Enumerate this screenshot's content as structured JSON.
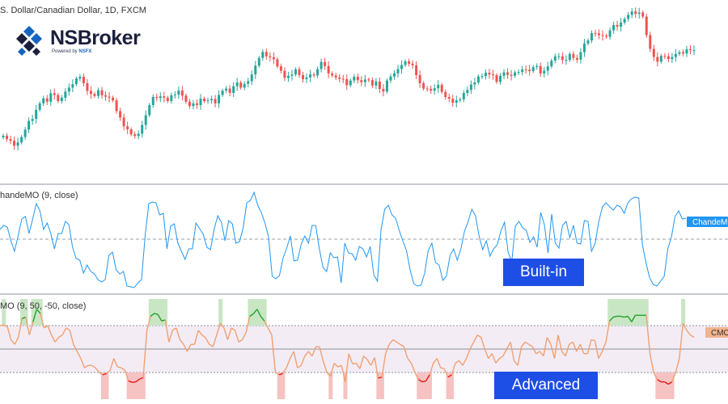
{
  "header": {
    "price_title": "S. Dollar/Canadian Dollar, 1D, FXCM",
    "builtin_title": "handeMO (9, close)",
    "advanced_title": "MO (9, 50, -50, close)"
  },
  "logo": {
    "name": "NSBroker",
    "sub_prefix": "Powered by ",
    "sub_brand": "NSFX"
  },
  "badges": {
    "builtin": "Built-in",
    "advanced": "Advanced"
  },
  "scale_tags": {
    "builtin": "ChandeMO",
    "advanced": "CMO"
  },
  "colors": {
    "up": "#26a69a",
    "down": "#ef5350",
    "builtin_line": "#2196f3",
    "advanced_mid": "#f0a070",
    "advanced_high": "#22a02a",
    "advanced_low": "#e31a1c",
    "badge": "#1d4ee6",
    "tag_builtin_bg": "#2196f3",
    "tag_advanced_bg": "#f0b48c"
  },
  "chart_data": {
    "type": "line",
    "price": {
      "closes": [
        1.2938,
        1.2928,
        1.2923,
        1.2908,
        1.2918,
        1.2934,
        1.2956,
        1.2982,
        1.2988,
        1.3015,
        1.3034,
        1.3049,
        1.3039,
        1.3064,
        1.3059,
        1.3041,
        1.3051,
        1.3069,
        1.3081,
        1.3091,
        1.3108,
        1.3113,
        1.3094,
        1.3071,
        1.3062,
        1.3056,
        1.3073,
        1.3058,
        1.3054,
        1.3051,
        1.3043,
        1.3011,
        1.2992,
        1.2966,
        1.2957,
        1.2942,
        1.2937,
        1.2944,
        1.297,
        1.2999,
        1.3029,
        1.3053,
        1.305,
        1.3055,
        1.3051,
        1.3041,
        1.3058,
        1.306,
        1.3072,
        1.3057,
        1.3039,
        1.3026,
        1.3034,
        1.3029,
        1.3048,
        1.3041,
        1.3043,
        1.3047,
        1.3034,
        1.3059,
        1.3072,
        1.3078,
        1.3065,
        1.3085,
        1.3096,
        1.3081,
        1.3092,
        1.31,
        1.312,
        1.3146,
        1.3169,
        1.3187,
        1.3174,
        1.3171,
        1.3165,
        1.3144,
        1.3131,
        1.311,
        1.3116,
        1.312,
        1.3135,
        1.3118,
        1.3106,
        1.3111,
        1.312,
        1.3117,
        1.3136,
        1.3157,
        1.3145,
        1.3123,
        1.3117,
        1.3111,
        1.3107,
        1.3106,
        1.3088,
        1.3102,
        1.3113,
        1.3103,
        1.3097,
        1.3105,
        1.3103,
        1.3087,
        1.3099,
        1.3077,
        1.3069,
        1.3102,
        1.3114,
        1.3123,
        1.3136,
        1.3148,
        1.3159,
        1.3152,
        1.3147,
        1.3118,
        1.3094,
        1.3078,
        1.3077,
        1.3072,
        1.3079,
        1.3089,
        1.3068,
        1.3053,
        1.3048,
        1.3036,
        1.3043,
        1.3046,
        1.3065,
        1.3074,
        1.309,
        1.3096,
        1.3114,
        1.3115,
        1.3125,
        1.312,
        1.3118,
        1.3098,
        1.3116,
        1.3126,
        1.3119,
        1.3116,
        1.3126,
        1.3127,
        1.3135,
        1.3134,
        1.313,
        1.3142,
        1.3145,
        1.3123,
        1.3131,
        1.3144,
        1.3161,
        1.3174,
        1.3174,
        1.3163,
        1.3163,
        1.3181,
        1.3169,
        1.3164,
        1.3186,
        1.3212,
        1.3221,
        1.3243,
        1.3242,
        1.3237,
        1.3235,
        1.3232,
        1.3251,
        1.3267,
        1.3262,
        1.3274,
        1.3285,
        1.3297,
        1.3307,
        1.33,
        1.3304,
        1.3292,
        1.3237,
        1.3196,
        1.3172,
        1.3158,
        1.3175,
        1.3174,
        1.3166,
        1.3172,
        1.3181,
        1.3186,
        1.3182,
        1.3195,
        1.3192,
        1.3192
      ]
    },
    "builtin_cmo": {
      "name": "ChandeMO",
      "params": "9, close",
      "ylim": [
        -60,
        60
      ],
      "zero_line": 0,
      "values": [
        12,
        17,
        15,
        -2,
        -15,
        4,
        25,
        28,
        7,
        25,
        44,
        35,
        12,
        20,
        7,
        -12,
        7,
        7,
        22,
        18,
        -10,
        -24,
        -26,
        -42,
        -32,
        -40,
        -43,
        -50,
        -53,
        -50,
        -20,
        -16,
        -38,
        -43,
        -40,
        -58,
        -59,
        -60,
        -54,
        -50,
        5,
        44,
        46,
        45,
        30,
        32,
        -12,
        16,
        19,
        -5,
        -15,
        -25,
        -12,
        -12,
        20,
        13,
        6,
        -10,
        -13,
        12,
        29,
        21,
        -2,
        23,
        19,
        -5,
        -3,
        14,
        45,
        48,
        58,
        42,
        33,
        20,
        3,
        -46,
        -49,
        -45,
        -23,
        -11,
        4,
        -27,
        -26,
        -6,
        4,
        -5,
        17,
        17,
        -12,
        -35,
        -40,
        -17,
        -23,
        -22,
        -54,
        -5,
        -17,
        -18,
        -26,
        -9,
        -12,
        -22,
        -9,
        -44,
        -52,
        12,
        37,
        42,
        30,
        26,
        11,
        -2,
        -14,
        -38,
        -55,
        -58,
        -57,
        -42,
        -14,
        -5,
        -29,
        -32,
        -51,
        -46,
        -20,
        -12,
        -26,
        -12,
        10,
        22,
        37,
        29,
        4,
        -13,
        -2,
        -21,
        -12,
        -7,
        10,
        21,
        -16,
        -28,
        16,
        22,
        14,
        11,
        -4,
        3,
        -10,
        33,
        18,
        -17,
        31,
        -5,
        -11,
        17,
        22,
        2,
        17,
        -5,
        -6,
        23,
        22,
        -15,
        -5,
        22,
        40,
        45,
        40,
        36,
        42,
        40,
        32,
        45,
        50,
        52,
        51,
        -7,
        -29,
        -48,
        -56,
        -58,
        -52,
        -46,
        -12,
        3,
        28,
        35,
        25,
        26
      ]
    },
    "advanced_cmo": {
      "name": "CMO",
      "params": "9, 50, -50, close",
      "upper": 50,
      "lower": -50,
      "ylim": [
        -100,
        100
      ],
      "values": [
        50,
        51,
        48,
        20,
        10,
        25,
        65,
        68,
        30,
        58,
        85,
        76,
        45,
        50,
        30,
        15,
        25,
        30,
        45,
        40,
        10,
        -5,
        -20,
        -40,
        -35,
        -35,
        -40,
        -50,
        -55,
        -52,
        -45,
        -20,
        -38,
        -40,
        -45,
        -68,
        -71,
        -70,
        -64,
        -61,
        40,
        70,
        76,
        74,
        60,
        62,
        15,
        40,
        45,
        20,
        10,
        -5,
        10,
        10,
        40,
        30,
        24,
        10,
        5,
        30,
        55,
        45,
        20,
        45,
        40,
        15,
        20,
        35,
        70,
        75,
        85,
        70,
        60,
        45,
        30,
        -50,
        -55,
        -52,
        -40,
        -20,
        -5,
        -40,
        -35,
        -15,
        -5,
        -15,
        5,
        5,
        -25,
        -50,
        -58,
        -30,
        -38,
        -35,
        -70,
        -10,
        -32,
        -30,
        -42,
        -15,
        -22,
        -35,
        -18,
        -62,
        -60,
        -10,
        10,
        20,
        15,
        10,
        5,
        -20,
        -30,
        -50,
        -65,
        -70,
        -68,
        -55,
        -30,
        -20,
        -40,
        -42,
        -60,
        -55,
        -30,
        -25,
        -35,
        -20,
        0,
        15,
        30,
        25,
        0,
        -20,
        -10,
        -30,
        -20,
        -15,
        0,
        15,
        -25,
        -35,
        5,
        15,
        10,
        5,
        -10,
        -5,
        -15,
        25,
        10,
        -20,
        30,
        -5,
        -15,
        10,
        15,
        -5,
        10,
        -10,
        -10,
        20,
        18,
        -20,
        -5,
        15,
        60,
        68,
        70,
        70,
        68,
        70,
        58,
        72,
        72,
        72,
        72,
        -10,
        -50,
        -65,
        -70,
        -70,
        -75,
        -70,
        -50,
        -20,
        55,
        40,
        30,
        25
      ],
      "highlights": [
        {
          "side": "low",
          "from": -44,
          "to": -65
        },
        {
          "side": "high",
          "from": 20,
          "to": 75
        }
      ]
    }
  }
}
